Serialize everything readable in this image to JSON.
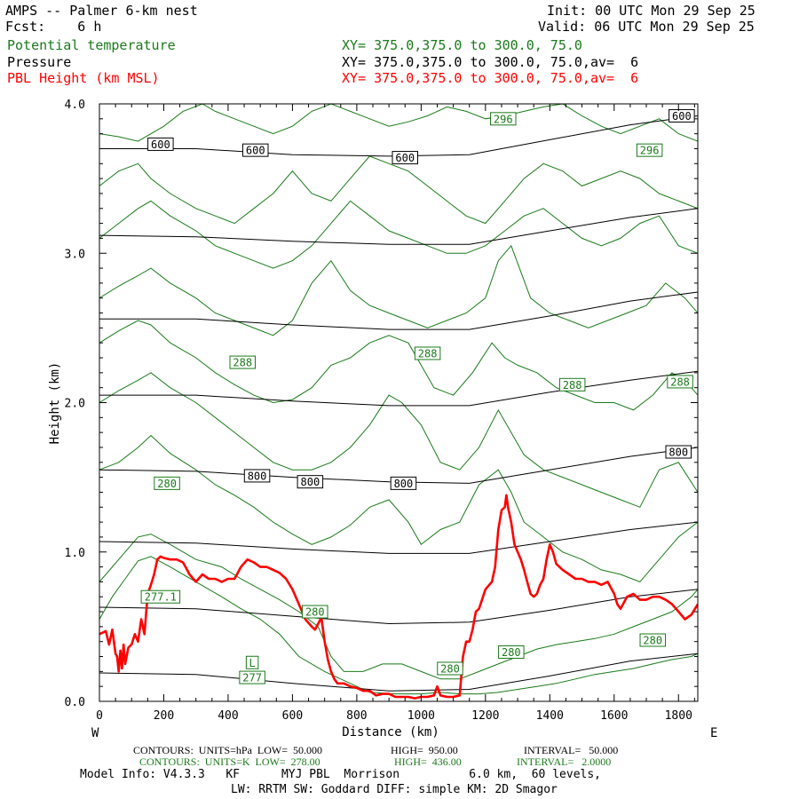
{
  "header": {
    "title": "AMPS -- Palmer 6-km nest",
    "fcst": "Fcst:    6 h",
    "init": "Init: 00 UTC Mon 29 Sep 25",
    "valid": "Valid: 06 UTC Mon 29 Sep 25",
    "field1": "Potential temperature",
    "field1_xy": "XY= 375.0,375.0 to 300.0, 75.0",
    "field2": "Pressure",
    "field2_xy": "XY= 375.0,375.0 to 300.0, 75.0,av=  6",
    "field3": "PBL Height (km MSL)",
    "field3_xy": "XY= 375.0,375.0 to 300.0, 75.0,av=  6"
  },
  "footer": {
    "line1_label": "CONTOURS:  UNITS=hPa  LOW=  50.000",
    "line1_high": "HIGH=  950.00",
    "line1_int": "INTERVAL=   50.000",
    "line2_label": "CONTOURS:  UNITS=K  LOW=  278.00",
    "line2_high": "HIGH=  436.00",
    "line2_int": "INTERVAL=   2.0000",
    "model_info": "Model Info: V4.3.3   KF      MYJ PBL  Morrison          6.0 km,  60 levels,",
    "physics": "LW: RRTM SW: Goddard DIFF: simple KM: 2D Smagor"
  },
  "chart_data": {
    "type": "line",
    "title": "AMPS -- Palmer 6-km nest",
    "xlabel": "Distance (km)",
    "ylabel": "Height (km)",
    "xlim": [
      0,
      1860
    ],
    "ylim": [
      0.0,
      4.0
    ],
    "xticks": [
      "0",
      "200",
      "400",
      "600",
      "800",
      "1000",
      "1200",
      "1400",
      "1600",
      "1800"
    ],
    "yticks": [
      "0.0",
      "1.0",
      "2.0",
      "3.0",
      "4.0"
    ],
    "left_label": "W",
    "right_label": "E",
    "colors": {
      "pressure": "#000000",
      "theta": "#1a7a1a",
      "pbl": "#ff0000"
    },
    "pressure_contours": [
      {
        "x": [
          0,
          300,
          600,
          900,
          1150,
          1400,
          1650,
          1860
        ],
        "y": [
          3.7,
          3.7,
          3.66,
          3.65,
          3.66,
          3.76,
          3.86,
          3.92
        ]
      },
      {
        "x": [
          0,
          300,
          600,
          900,
          1150,
          1400,
          1650,
          1860
        ],
        "y": [
          3.12,
          3.11,
          3.08,
          3.06,
          3.06,
          3.15,
          3.24,
          3.3
        ]
      },
      {
        "x": [
          0,
          300,
          600,
          900,
          1150,
          1400,
          1650,
          1860
        ],
        "y": [
          2.56,
          2.56,
          2.52,
          2.49,
          2.49,
          2.58,
          2.68,
          2.74
        ]
      },
      {
        "x": [
          0,
          300,
          600,
          900,
          1150,
          1400,
          1650,
          1860
        ],
        "y": [
          2.05,
          2.05,
          2.01,
          1.98,
          1.98,
          2.07,
          2.15,
          2.21
        ]
      },
      {
        "x": [
          0,
          300,
          600,
          900,
          1150,
          1400,
          1650,
          1860
        ],
        "y": [
          1.55,
          1.54,
          1.5,
          1.47,
          1.46,
          1.55,
          1.64,
          1.7
        ]
      },
      {
        "x": [
          0,
          300,
          600,
          900,
          1150,
          1400,
          1650,
          1860
        ],
        "y": [
          1.07,
          1.06,
          1.02,
          0.99,
          0.99,
          1.07,
          1.15,
          1.2
        ]
      },
      {
        "x": [
          0,
          300,
          600,
          900,
          1150,
          1400,
          1650,
          1860
        ],
        "y": [
          0.63,
          0.62,
          0.57,
          0.52,
          0.53,
          0.61,
          0.7,
          0.75
        ]
      },
      {
        "x": [
          0,
          300,
          600,
          900,
          1150,
          1400,
          1650,
          1860
        ],
        "y": [
          0.19,
          0.18,
          0.12,
          0.07,
          0.08,
          0.17,
          0.27,
          0.32
        ]
      }
    ],
    "pressure_labels": [
      {
        "text": "600",
        "x": 190,
        "y": 3.73
      },
      {
        "text": "600",
        "x": 485,
        "y": 3.69
      },
      {
        "text": "600",
        "x": 950,
        "y": 3.64
      },
      {
        "text": "600",
        "x": 1810,
        "y": 3.92
      },
      {
        "text": "800",
        "x": 490,
        "y": 1.51
      },
      {
        "text": "800",
        "x": 655,
        "y": 1.47
      },
      {
        "text": "800",
        "x": 945,
        "y": 1.46
      },
      {
        "text": "800",
        "x": 1800,
        "y": 1.67
      }
    ],
    "theta_contours": [
      {
        "x": [
          0,
          40,
          80,
          120,
          160,
          220,
          300,
          380,
          440,
          500,
          560,
          620,
          700,
          780,
          840,
          920,
          1000,
          1060,
          1120,
          1180,
          1240,
          1300,
          1360,
          1420,
          1480,
          1540,
          1600,
          1660,
          1720,
          1780,
          1840,
          1860
        ],
        "y": [
          0.55,
          0.7,
          0.82,
          0.94,
          0.97,
          0.9,
          0.8,
          0.7,
          0.62,
          0.55,
          0.45,
          0.3,
          0.2,
          0.12,
          0.06,
          0.05,
          0.05,
          0.06,
          0.05,
          0.05,
          0.06,
          0.08,
          0.1,
          0.12,
          0.15,
          0.18,
          0.2,
          0.22,
          0.25,
          0.28,
          0.3,
          0.32
        ]
      },
      {
        "x": [
          0,
          60,
          120,
          160,
          220,
          300,
          380,
          440,
          500,
          560,
          620,
          680,
          720,
          760,
          820,
          880,
          940,
          1000,
          1060,
          1120,
          1180,
          1240,
          1300,
          1360,
          1420,
          1480,
          1540,
          1600,
          1660,
          1720,
          1780,
          1840,
          1860
        ],
        "y": [
          0.8,
          0.95,
          1.1,
          1.12,
          1.05,
          0.95,
          0.9,
          0.82,
          0.75,
          0.68,
          0.6,
          0.5,
          0.3,
          0.2,
          0.2,
          0.25,
          0.25,
          0.2,
          0.15,
          0.15,
          0.2,
          0.25,
          0.3,
          0.35,
          0.38,
          0.4,
          0.42,
          0.45,
          0.5,
          0.55,
          0.6,
          0.7,
          0.75
        ]
      },
      {
        "x": [
          0,
          60,
          120,
          160,
          220,
          300,
          360,
          420,
          480,
          540,
          600,
          660,
          720,
          780,
          840,
          900,
          960,
          1000,
          1060,
          1120,
          1180,
          1240,
          1280,
          1320,
          1380,
          1440,
          1500,
          1560,
          1620,
          1680,
          1740,
          1800,
          1860
        ],
        "y": [
          1.55,
          1.6,
          1.7,
          1.78,
          1.66,
          1.55,
          1.45,
          1.38,
          1.3,
          1.2,
          1.12,
          1.05,
          1.1,
          1.18,
          1.3,
          1.35,
          1.2,
          1.05,
          1.15,
          1.2,
          1.45,
          1.55,
          1.4,
          1.2,
          1.1,
          1.0,
          0.95,
          0.88,
          0.85,
          0.8,
          0.95,
          1.1,
          1.2
        ]
      },
      {
        "x": [
          0,
          60,
          120,
          160,
          220,
          300,
          360,
          420,
          480,
          540,
          600,
          660,
          720,
          780,
          840,
          900,
          940,
          1000,
          1060,
          1120,
          1180,
          1240,
          1280,
          1320,
          1380,
          1440,
          1500,
          1560,
          1620,
          1680,
          1740,
          1800,
          1860
        ],
        "y": [
          2.0,
          2.08,
          2.15,
          2.2,
          2.1,
          2.0,
          1.9,
          1.8,
          1.7,
          1.6,
          1.55,
          1.55,
          1.6,
          1.7,
          1.85,
          2.05,
          2.0,
          1.85,
          1.6,
          1.55,
          1.7,
          1.95,
          1.8,
          1.65,
          1.55,
          1.5,
          1.45,
          1.4,
          1.35,
          1.3,
          1.55,
          1.6,
          1.4
        ]
      },
      {
        "x": [
          0,
          60,
          120,
          160,
          220,
          300,
          360,
          420,
          480,
          540,
          600,
          660,
          720,
          780,
          840,
          900,
          960,
          1000,
          1040,
          1100,
          1160,
          1220,
          1260,
          1300,
          1360,
          1420,
          1480,
          1540,
          1600,
          1660,
          1720,
          1780,
          1840,
          1860
        ],
        "y": [
          2.4,
          2.48,
          2.55,
          2.52,
          2.4,
          2.3,
          2.2,
          2.12,
          2.05,
          2.0,
          2.02,
          2.1,
          2.25,
          2.3,
          2.4,
          2.45,
          2.4,
          2.25,
          2.1,
          2.05,
          2.2,
          2.4,
          2.3,
          2.25,
          2.2,
          2.1,
          2.05,
          2.0,
          2.0,
          1.95,
          2.05,
          2.2,
          2.1,
          2.05
        ]
      },
      {
        "x": [
          0,
          60,
          120,
          160,
          220,
          300,
          360,
          420,
          480,
          540,
          600,
          660,
          720,
          780,
          840,
          900,
          960,
          1020,
          1080,
          1140,
          1200,
          1240,
          1280,
          1340,
          1400,
          1460,
          1520,
          1580,
          1640,
          1700,
          1760,
          1820,
          1860
        ],
        "y": [
          2.7,
          2.78,
          2.85,
          2.9,
          2.8,
          2.7,
          2.6,
          2.55,
          2.5,
          2.45,
          2.55,
          2.8,
          2.95,
          2.75,
          2.65,
          2.6,
          2.55,
          2.5,
          2.55,
          2.6,
          2.7,
          2.95,
          3.05,
          2.7,
          2.6,
          2.55,
          2.5,
          2.55,
          2.6,
          2.65,
          2.8,
          2.7,
          2.6
        ]
      },
      {
        "x": [
          0,
          60,
          120,
          160,
          220,
          300,
          360,
          420,
          480,
          540,
          600,
          660,
          720,
          780,
          840,
          900,
          960,
          1020,
          1080,
          1140,
          1200,
          1260,
          1320,
          1380,
          1440,
          1500,
          1560,
          1620,
          1680,
          1740,
          1800,
          1860
        ],
        "y": [
          3.1,
          3.2,
          3.3,
          3.35,
          3.25,
          3.15,
          3.05,
          3.0,
          2.95,
          2.9,
          2.95,
          3.05,
          3.2,
          3.35,
          3.25,
          3.15,
          3.1,
          3.05,
          3.0,
          3.0,
          3.05,
          3.15,
          3.25,
          3.3,
          3.2,
          3.1,
          3.05,
          3.1,
          3.2,
          3.25,
          3.05,
          3.0
        ]
      },
      {
        "x": [
          0,
          60,
          120,
          160,
          220,
          300,
          360,
          420,
          480,
          540,
          600,
          660,
          720,
          780,
          840,
          900,
          960,
          1020,
          1080,
          1140,
          1200,
          1260,
          1320,
          1380,
          1440,
          1500,
          1560,
          1620,
          1680,
          1740,
          1800,
          1860
        ],
        "y": [
          3.45,
          3.55,
          3.6,
          3.5,
          3.4,
          3.3,
          3.25,
          3.2,
          3.3,
          3.4,
          3.55,
          3.4,
          3.35,
          3.5,
          3.65,
          3.6,
          3.55,
          3.45,
          3.35,
          3.25,
          3.2,
          3.35,
          3.5,
          3.6,
          3.55,
          3.45,
          3.5,
          3.55,
          3.5,
          3.4,
          3.35,
          3.3
        ]
      },
      {
        "x": [
          0,
          60,
          120,
          200,
          260,
          320,
          360,
          420,
          480,
          540,
          600,
          660,
          720,
          780,
          840,
          900,
          960,
          1020,
          1080,
          1140,
          1200,
          1260,
          1320,
          1380,
          1440,
          1500,
          1560,
          1620,
          1680,
          1740,
          1800,
          1860
        ],
        "y": [
          3.8,
          3.78,
          3.75,
          3.85,
          3.95,
          4.0,
          3.95,
          3.9,
          3.85,
          3.8,
          3.85,
          3.95,
          4.0,
          3.95,
          3.9,
          3.85,
          3.88,
          3.92,
          3.98,
          3.95,
          3.9,
          3.92,
          3.95,
          3.98,
          4.0,
          3.92,
          3.85,
          3.8,
          3.85,
          3.9,
          3.8,
          3.75
        ]
      }
    ],
    "theta_labels": [
      {
        "text": "296",
        "x": 1255,
        "y": 3.9
      },
      {
        "text": "296",
        "x": 1710,
        "y": 3.69
      },
      {
        "text": "288",
        "x": 445,
        "y": 2.27
      },
      {
        "text": "288",
        "x": 1020,
        "y": 2.33
      },
      {
        "text": "288",
        "x": 1470,
        "y": 2.12
      },
      {
        "text": "288",
        "x": 1805,
        "y": 2.14
      },
      {
        "text": "280",
        "x": 210,
        "y": 1.46
      },
      {
        "text": "280",
        "x": 670,
        "y": 0.6
      },
      {
        "text": "280",
        "x": 1090,
        "y": 0.22
      },
      {
        "text": "280",
        "x": 1280,
        "y": 0.33
      },
      {
        "text": "280",
        "x": 1720,
        "y": 0.41
      },
      {
        "text": "277.1",
        "x": 190,
        "y": 0.7
      },
      {
        "text": "L",
        "x": 475,
        "y": 0.26
      },
      {
        "text": "277",
        "x": 475,
        "y": 0.16
      }
    ],
    "pbl_height": {
      "x": [
        0,
        20,
        30,
        40,
        50,
        55,
        60,
        65,
        70,
        75,
        80,
        90,
        100,
        110,
        120,
        130,
        140,
        150,
        160,
        170,
        180,
        190,
        200,
        220,
        240,
        260,
        280,
        300,
        320,
        340,
        360,
        380,
        400,
        420,
        440,
        460,
        480,
        500,
        520,
        540,
        560,
        580,
        600,
        620,
        640,
        660,
        670,
        680,
        690,
        700,
        710,
        720,
        730,
        740,
        760,
        780,
        800,
        820,
        840,
        860,
        880,
        900,
        920,
        940,
        960,
        980,
        1000,
        1020,
        1040,
        1050,
        1060,
        1080,
        1100,
        1120,
        1130,
        1140,
        1150,
        1160,
        1170,
        1180,
        1200,
        1220,
        1230,
        1240,
        1250,
        1260,
        1265,
        1270,
        1280,
        1290,
        1300,
        1310,
        1320,
        1330,
        1340,
        1350,
        1360,
        1370,
        1380,
        1390,
        1400,
        1410,
        1420,
        1440,
        1460,
        1480,
        1500,
        1520,
        1540,
        1560,
        1580,
        1600,
        1610,
        1620,
        1640,
        1660,
        1680,
        1700,
        1720,
        1740,
        1760,
        1780,
        1800,
        1820,
        1840,
        1860
      ],
      "y": [
        0.45,
        0.47,
        0.38,
        0.48,
        0.32,
        0.3,
        0.2,
        0.34,
        0.22,
        0.38,
        0.25,
        0.36,
        0.38,
        0.45,
        0.4,
        0.55,
        0.45,
        0.72,
        0.78,
        0.85,
        0.95,
        0.97,
        0.96,
        0.95,
        0.95,
        0.93,
        0.85,
        0.8,
        0.85,
        0.82,
        0.82,
        0.8,
        0.82,
        0.82,
        0.9,
        0.95,
        0.93,
        0.9,
        0.9,
        0.88,
        0.86,
        0.82,
        0.75,
        0.65,
        0.55,
        0.5,
        0.48,
        0.52,
        0.56,
        0.4,
        0.28,
        0.2,
        0.15,
        0.12,
        0.12,
        0.1,
        0.09,
        0.07,
        0.07,
        0.04,
        0.05,
        0.05,
        0.03,
        0.03,
        0.03,
        0.02,
        0.03,
        0.03,
        0.04,
        0.1,
        0.04,
        0.03,
        0.03,
        0.04,
        0.3,
        0.4,
        0.4,
        0.48,
        0.6,
        0.62,
        0.75,
        0.8,
        0.9,
        1.15,
        1.28,
        1.3,
        1.38,
        1.3,
        1.2,
        1.05,
        1.0,
        0.95,
        0.88,
        0.8,
        0.72,
        0.7,
        0.72,
        0.78,
        0.82,
        0.95,
        1.05,
        1.0,
        0.92,
        0.88,
        0.85,
        0.82,
        0.82,
        0.8,
        0.8,
        0.78,
        0.8,
        0.72,
        0.65,
        0.62,
        0.7,
        0.72,
        0.68,
        0.68,
        0.7,
        0.7,
        0.68,
        0.65,
        0.6,
        0.55,
        0.58,
        0.65
      ]
    }
  }
}
